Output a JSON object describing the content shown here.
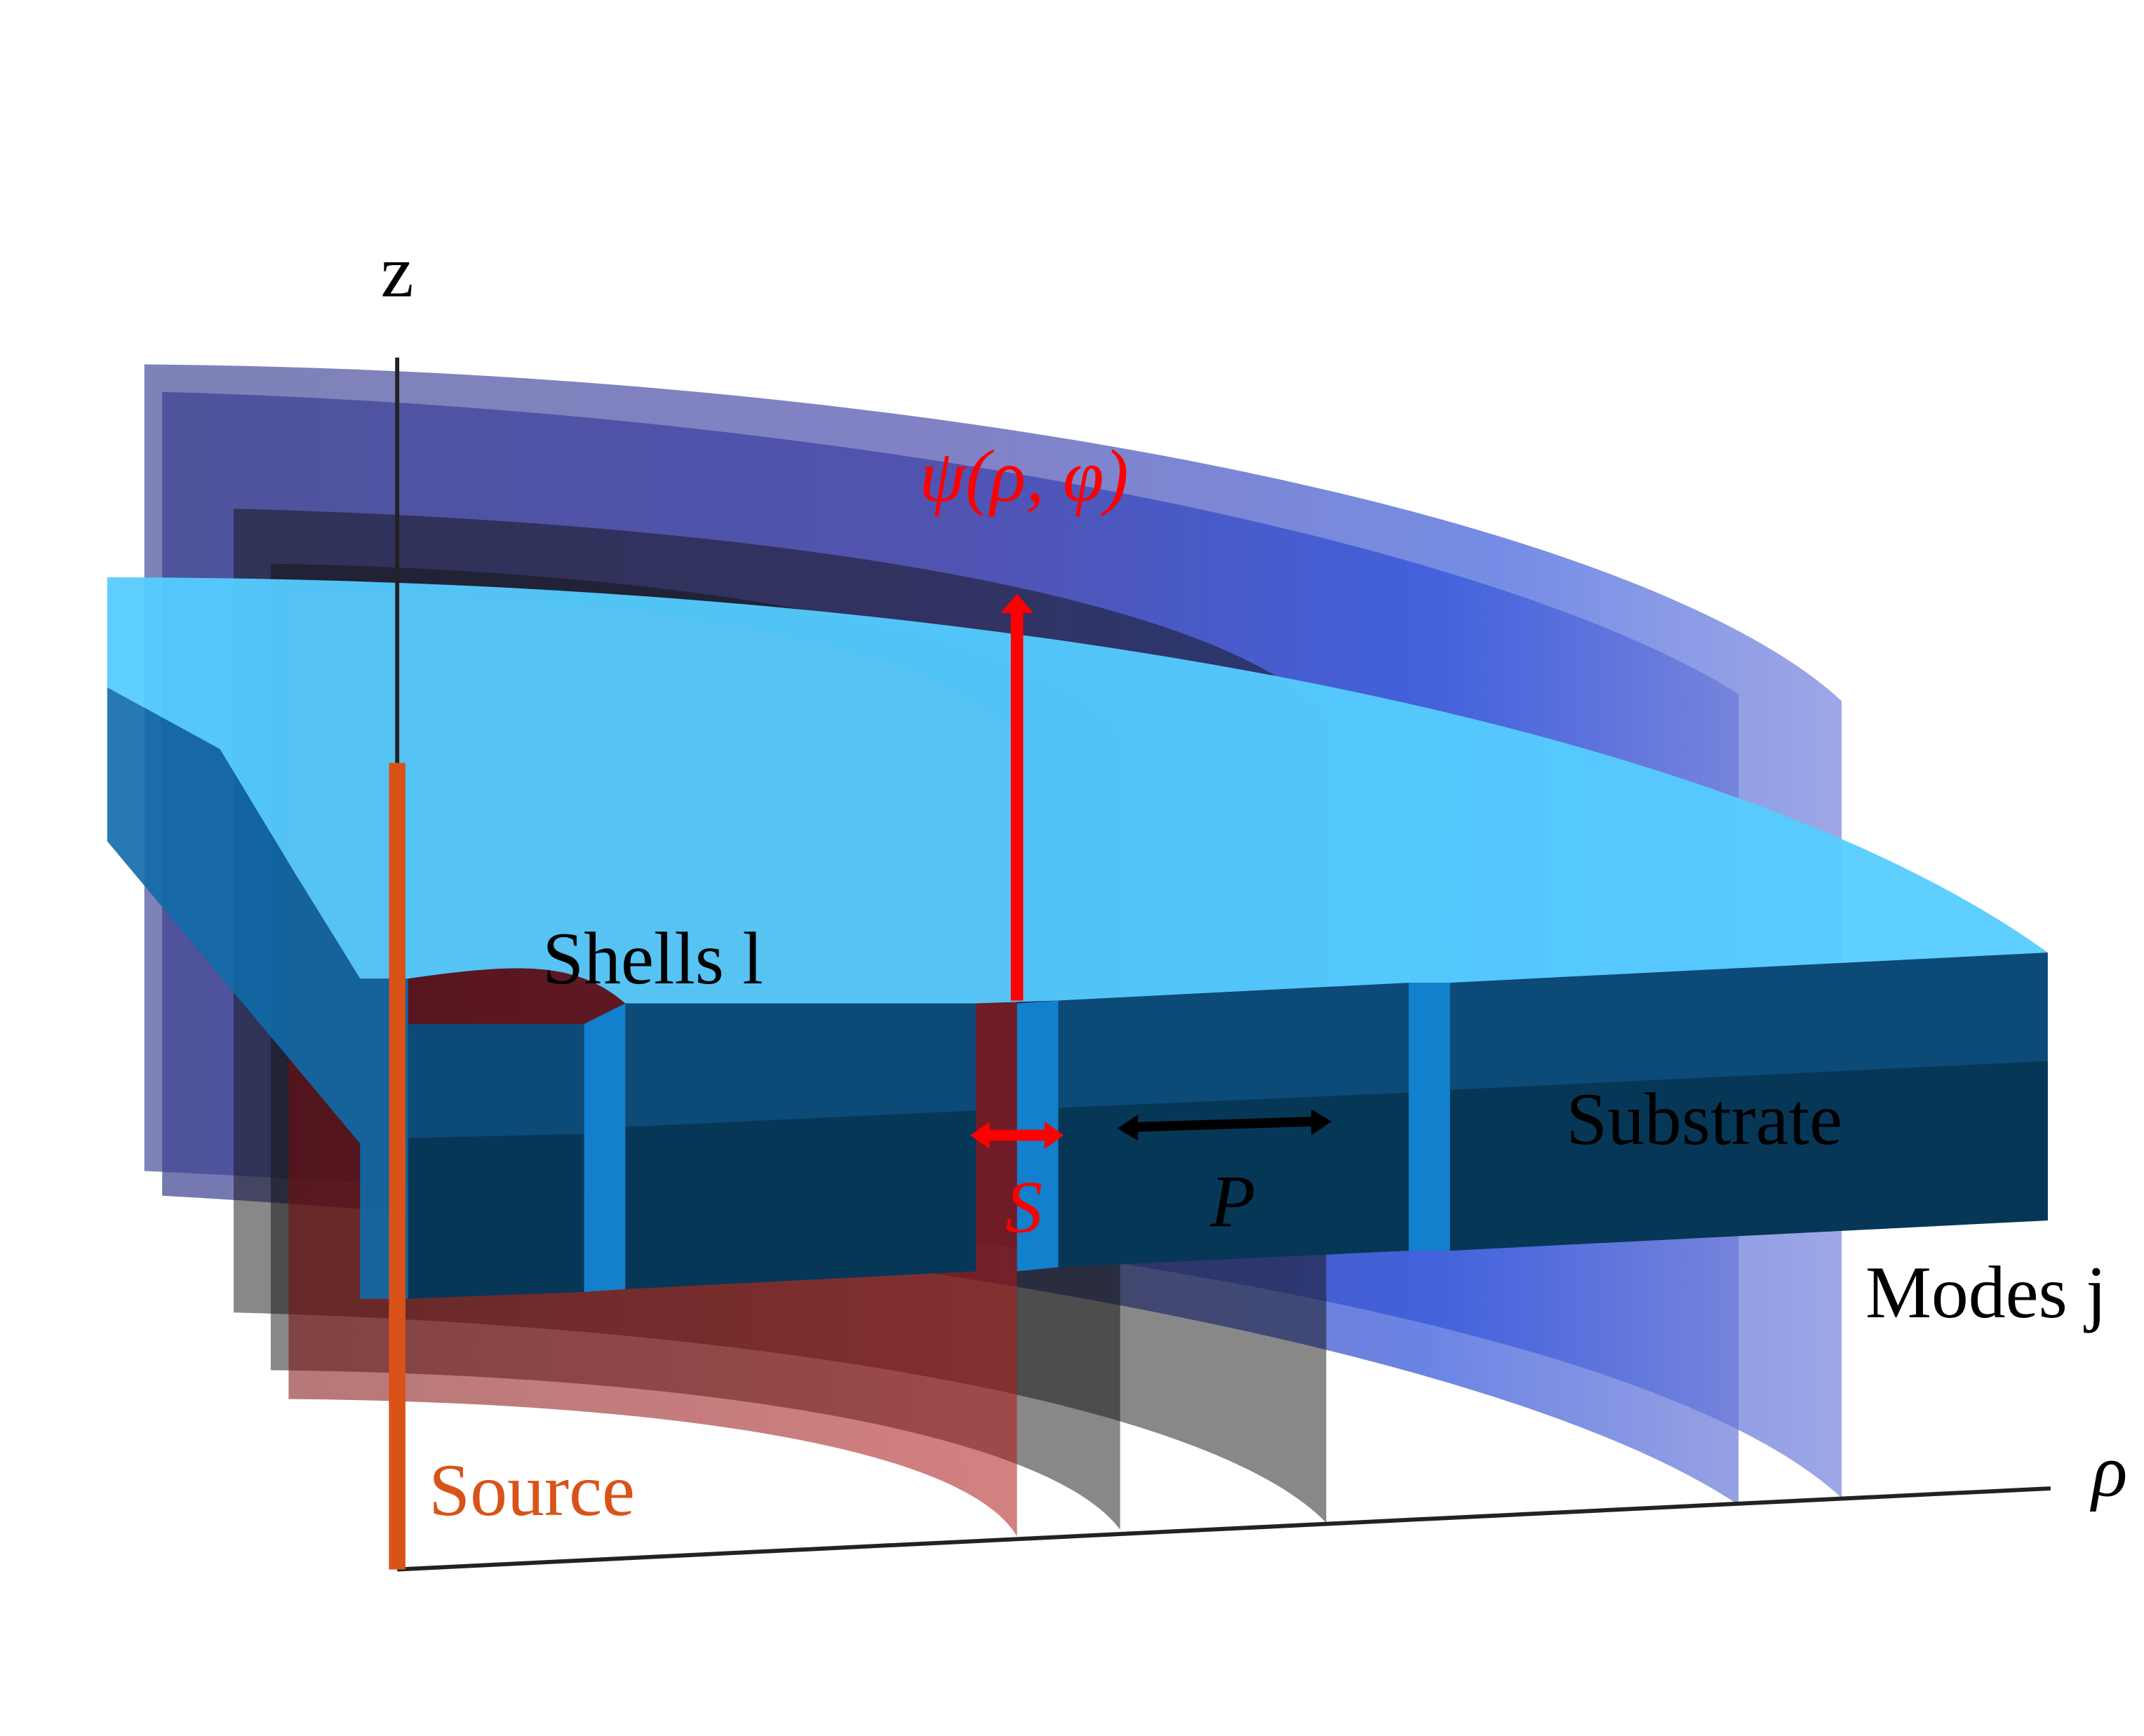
{
  "axes": {
    "z": "z",
    "rho": "ρ"
  },
  "labels": {
    "field": "ψ(ρ, φ)",
    "shells": "Shells l",
    "spacing": "S",
    "period": "P",
    "substrate": "Substrate",
    "modes": "Modes j",
    "source": "Source"
  }
}
